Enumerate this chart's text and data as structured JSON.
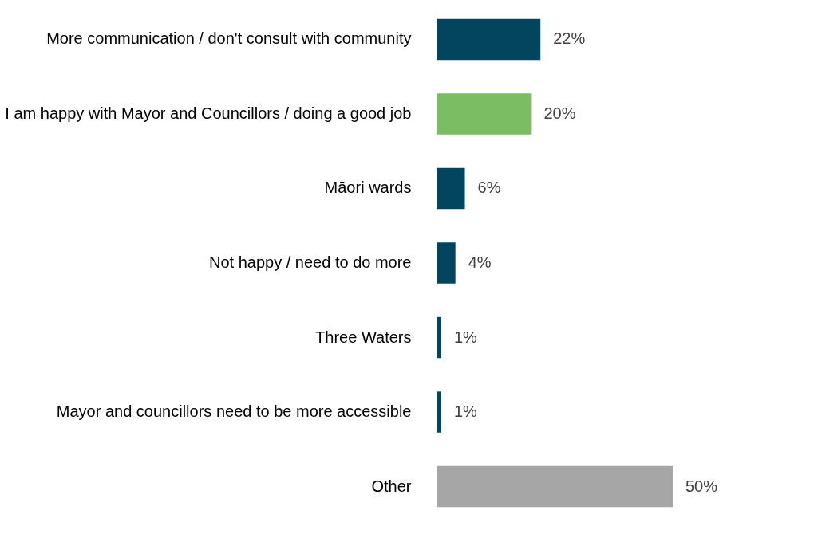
{
  "chart_data": {
    "type": "bar",
    "orientation": "horizontal",
    "categories": [
      "More communication / don't consult with community",
      "I am happy with Mayor and Councillors / doing a good job",
      "Māori wards",
      "Not happy / need to do more",
      "Three Waters",
      "Mayor and councillors need to be more accessible",
      "Other"
    ],
    "values": [
      22,
      20,
      6,
      4,
      1,
      1,
      50
    ],
    "colors": [
      "#03445e",
      "#7bbd63",
      "#03445e",
      "#03445e",
      "#03445e",
      "#03445e",
      "#a6a6a6"
    ],
    "value_labels": [
      "22%",
      "20%",
      "6%",
      "4%",
      "1%",
      "1%",
      "50%"
    ]
  }
}
